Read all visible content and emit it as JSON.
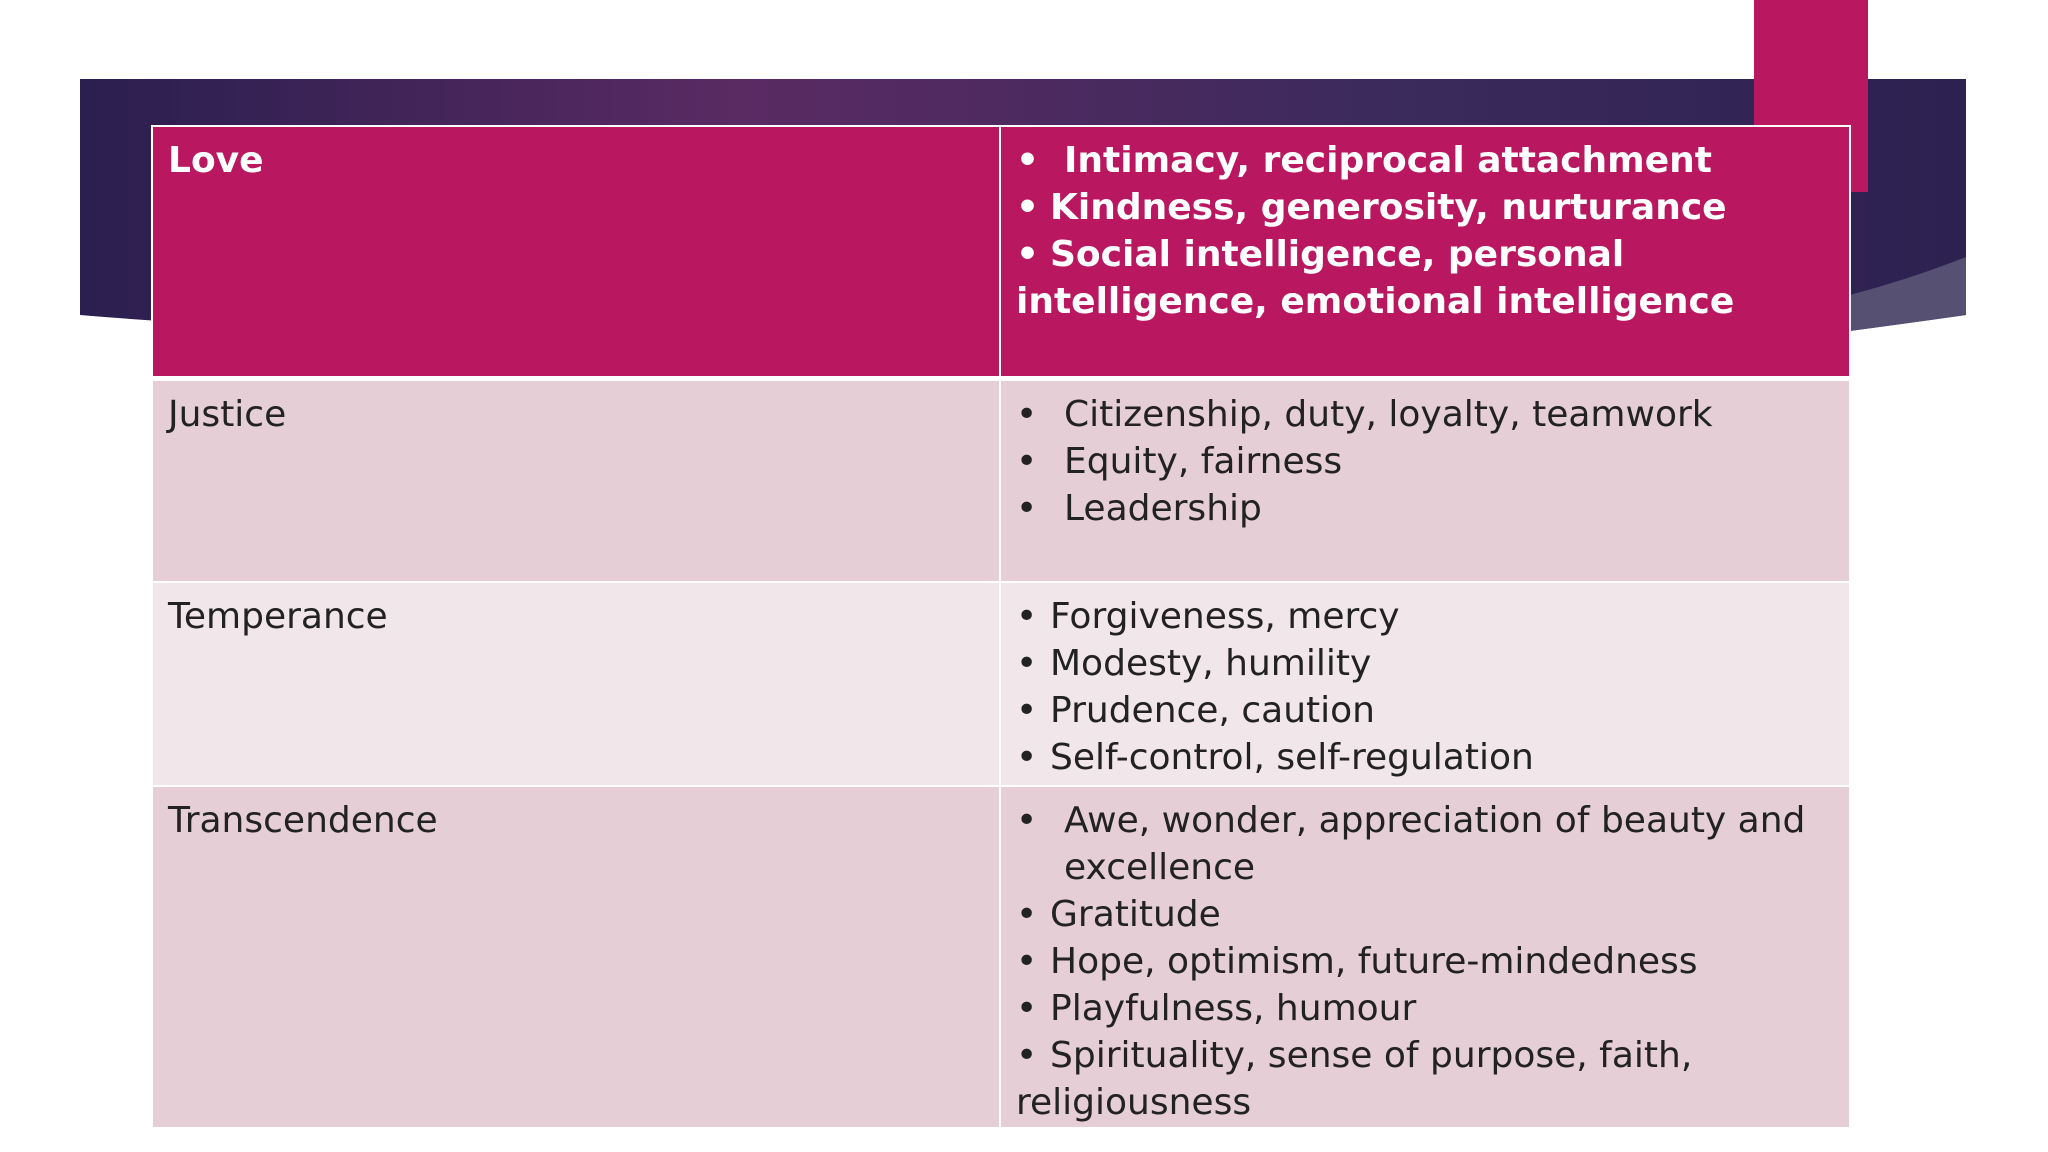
{
  "colors": {
    "accent": "#b9175f",
    "band_dark": "#2a1f4f",
    "band_purple": "#5a2a63",
    "row_light": "#f1e6ea",
    "row_mid": "#e5ced5"
  },
  "table": {
    "rows": [
      {
        "virtue": "Love",
        "strengths": [
          "Intimacy, reciprocal attachment",
          "Kindness, generosity, nurturance",
          "Social intelligence, personal intelligence, emotional intelligence"
        ]
      },
      {
        "virtue": "Justice",
        "strengths": [
          "Citizenship, duty, loyalty, teamwork",
          "Equity, fairness",
          "Leadership"
        ]
      },
      {
        "virtue": "Temperance",
        "strengths": [
          "Forgiveness, mercy",
          "Modesty, humility",
          "Prudence, caution",
          "Self-control, self-regulation"
        ]
      },
      {
        "virtue": "Transcendence",
        "strengths": [
          "Awe, wonder, appreciation of beauty and excellence",
          "Gratitude",
          "Hope, optimism, future-mindedness",
          "Playfulness, humour",
          "Spirituality, sense of purpose, faith, religiousness"
        ]
      }
    ]
  }
}
